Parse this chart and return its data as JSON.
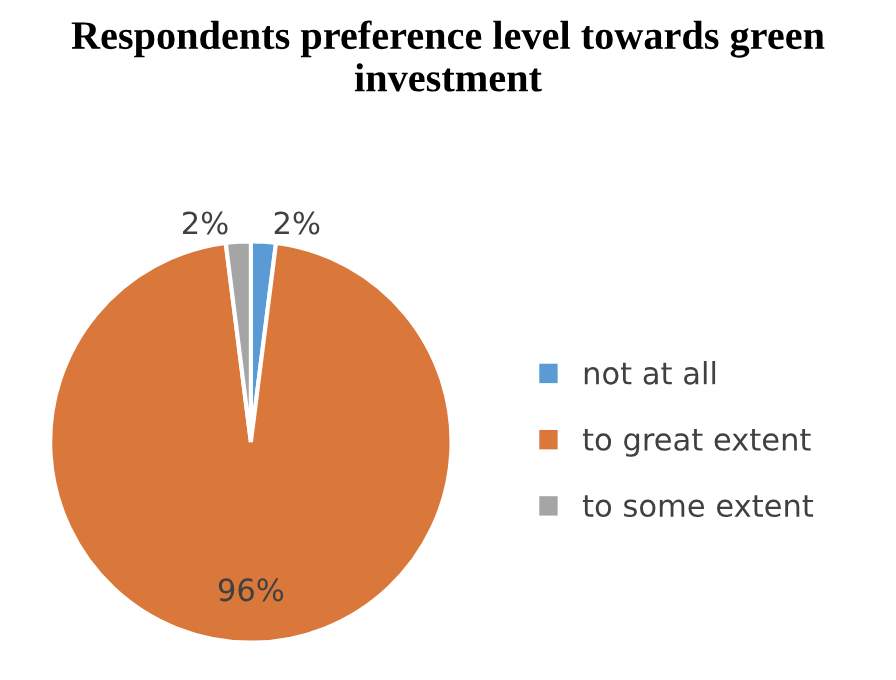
{
  "chart_data": {
    "type": "pie",
    "title": "Respondents preference level towards green investment",
    "categories": [
      "not at all",
      "to great extent",
      "to some extent"
    ],
    "values": [
      2,
      96,
      2
    ],
    "colors": [
      "#5b9bd5",
      "#d9783a",
      "#a5a5a5"
    ],
    "value_labels": [
      "2%",
      "96%",
      "2%"
    ],
    "legend": "right"
  }
}
